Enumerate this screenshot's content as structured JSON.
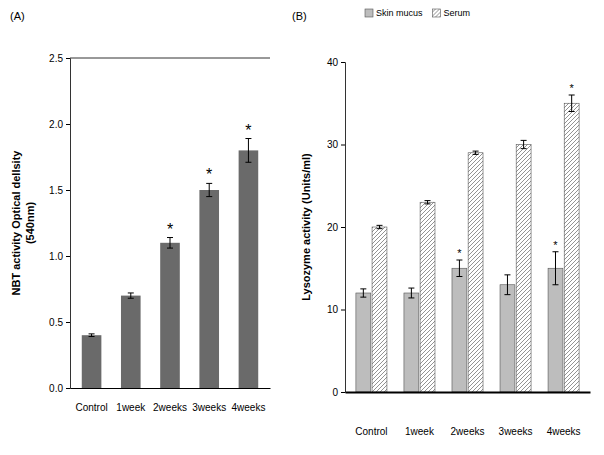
{
  "chart_data": [
    {
      "type": "bar",
      "title": "(A)",
      "y_label": [
        "NBT activity Optical dellsity",
        "(540nm)"
      ],
      "categories": [
        "Control",
        "1week",
        "2weeks",
        "3weeks",
        "4weeks"
      ],
      "values": [
        0.4,
        0.7,
        1.1,
        1.5,
        1.8
      ],
      "errors": [
        0.01,
        0.02,
        0.04,
        0.05,
        0.09
      ],
      "annotations": [
        null,
        null,
        "*",
        "*",
        "*"
      ],
      "color": "#6a6a6a",
      "ylim": [
        0,
        2.5
      ],
      "yticks": [
        {
          "value": 0,
          "label": "0.0"
        },
        0.5,
        {
          "value": 1,
          "label": "1.0"
        },
        1.5,
        {
          "value": 2,
          "label": "2.0"
        },
        2.5
      ],
      "grid": false
    },
    {
      "type": "bar",
      "title": "(B)",
      "y_label": [
        "Lysozyme activity (Units/ml)"
      ],
      "categories": [
        "Control",
        "1week",
        "2weeks",
        "3weeks",
        "4weeks"
      ],
      "series": [
        {
          "name": "Skin mucus",
          "color": "#bdbdbd",
          "values": [
            12,
            12,
            15,
            13,
            15
          ],
          "errors": [
            0.5,
            0.6,
            1,
            1.2,
            2
          ],
          "annotations": [
            null,
            null,
            "*",
            null,
            "*"
          ]
        },
        {
          "name": "Serum",
          "color": "#ffffff",
          "values": [
            20,
            23,
            29,
            30,
            35
          ],
          "errors": [
            0.2,
            0.2,
            0.2,
            0.5,
            1
          ],
          "annotations": [
            null,
            null,
            null,
            null,
            "*"
          ]
        }
      ],
      "ylim": [
        0,
        40
      ],
      "yticks": [
        0,
        10,
        20,
        30,
        40
      ],
      "legend": "top",
      "grid": false
    }
  ]
}
